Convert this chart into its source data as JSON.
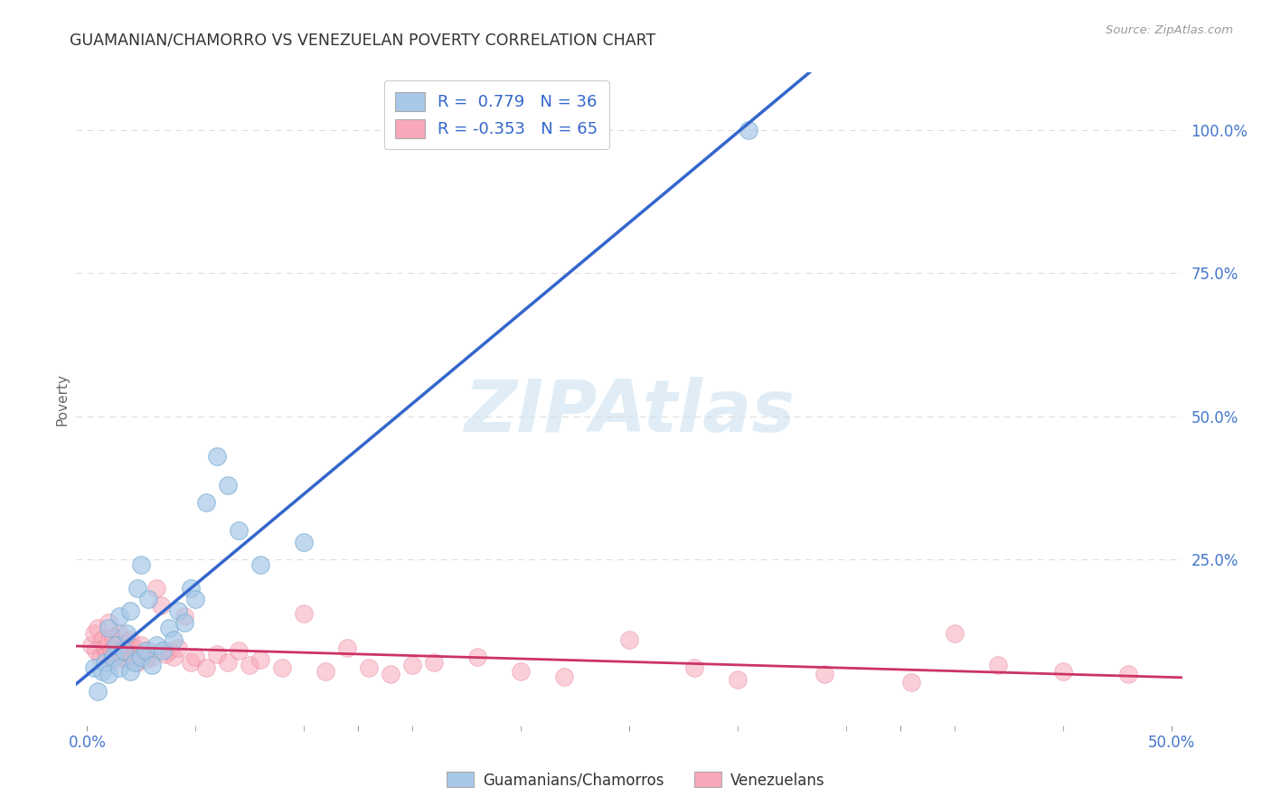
{
  "title": "GUAMANIAN/CHAMORRO VS VENEZUELAN POVERTY CORRELATION CHART",
  "source": "Source: ZipAtlas.com",
  "ylabel": "Poverty",
  "watermark": "ZIPAtlas",
  "blue_R": 0.779,
  "blue_N": 36,
  "pink_R": -0.353,
  "pink_N": 65,
  "blue_color": "#a8c8e8",
  "blue_edge_color": "#7aafd4",
  "blue_line_color": "#3366cc",
  "pink_color": "#f8a8b8",
  "pink_edge_color": "#e07090",
  "pink_line_color": "#cc3366",
  "legend_blue_label": "R =  0.779   N = 36",
  "legend_pink_label": "R = -0.353   N = 65",
  "background_color": "#ffffff",
  "grid_color": "#dddddd",
  "ytick_color": "#4477cc",
  "xtick_color": "#4477cc",
  "blue_scatter_x": [
    0.003,
    0.005,
    0.007,
    0.008,
    0.01,
    0.01,
    0.012,
    0.013,
    0.015,
    0.015,
    0.017,
    0.018,
    0.02,
    0.02,
    0.022,
    0.023,
    0.025,
    0.025,
    0.027,
    0.028,
    0.03,
    0.032,
    0.035,
    0.038,
    0.04,
    0.042,
    0.045,
    0.048,
    0.05,
    0.055,
    0.06,
    0.065,
    0.07,
    0.08,
    0.1,
    0.305
  ],
  "blue_scatter_y": [
    0.06,
    0.02,
    0.055,
    0.07,
    0.05,
    0.13,
    0.08,
    0.1,
    0.06,
    0.15,
    0.09,
    0.12,
    0.055,
    0.16,
    0.07,
    0.2,
    0.08,
    0.24,
    0.09,
    0.18,
    0.065,
    0.1,
    0.09,
    0.13,
    0.11,
    0.16,
    0.14,
    0.2,
    0.18,
    0.35,
    0.43,
    0.38,
    0.3,
    0.24,
    0.28,
    1.0
  ],
  "pink_scatter_x": [
    0.002,
    0.003,
    0.004,
    0.005,
    0.006,
    0.007,
    0.008,
    0.009,
    0.01,
    0.01,
    0.011,
    0.012,
    0.013,
    0.014,
    0.015,
    0.015,
    0.016,
    0.017,
    0.018,
    0.018,
    0.019,
    0.02,
    0.021,
    0.022,
    0.023,
    0.024,
    0.025,
    0.027,
    0.028,
    0.03,
    0.032,
    0.034,
    0.036,
    0.038,
    0.04,
    0.042,
    0.045,
    0.048,
    0.05,
    0.055,
    0.06,
    0.065,
    0.07,
    0.075,
    0.08,
    0.09,
    0.1,
    0.11,
    0.12,
    0.13,
    0.14,
    0.15,
    0.16,
    0.18,
    0.2,
    0.22,
    0.25,
    0.28,
    0.3,
    0.34,
    0.38,
    0.4,
    0.42,
    0.45,
    0.48
  ],
  "pink_scatter_y": [
    0.1,
    0.12,
    0.09,
    0.13,
    0.08,
    0.11,
    0.095,
    0.085,
    0.105,
    0.14,
    0.09,
    0.115,
    0.075,
    0.1,
    0.085,
    0.12,
    0.095,
    0.08,
    0.105,
    0.075,
    0.09,
    0.11,
    0.08,
    0.095,
    0.07,
    0.085,
    0.1,
    0.075,
    0.09,
    0.08,
    0.2,
    0.17,
    0.085,
    0.09,
    0.08,
    0.095,
    0.15,
    0.07,
    0.08,
    0.06,
    0.085,
    0.07,
    0.09,
    0.065,
    0.075,
    0.06,
    0.155,
    0.055,
    0.095,
    0.06,
    0.05,
    0.065,
    0.07,
    0.08,
    0.055,
    0.045,
    0.11,
    0.06,
    0.04,
    0.05,
    0.035,
    0.12,
    0.065,
    0.055,
    0.05
  ]
}
